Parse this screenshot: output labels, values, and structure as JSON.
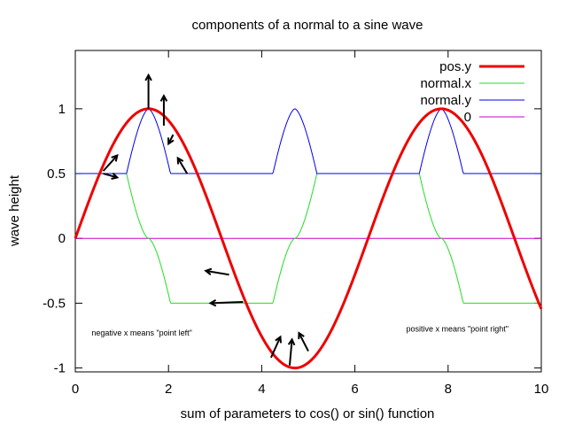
{
  "chart_data": {
    "type": "line",
    "title": "components of a normal to a sine wave",
    "xlabel": "sum of parameters to cos() or sin() function",
    "ylabel": "wave height",
    "xlim": [
      0,
      10
    ],
    "ylim": [
      -1.03,
      1.45
    ],
    "x_ticks": [
      0,
      2,
      4,
      6,
      8,
      10
    ],
    "y_ticks": [
      -1,
      -0.5,
      0,
      0.5,
      1
    ],
    "x_tick_labels": [
      "0",
      "2",
      "4",
      "6",
      "8",
      "10"
    ],
    "y_tick_labels": [
      "-1",
      "-0.5",
      "0",
      "0.5",
      "1"
    ],
    "grid": false,
    "legend_position": "top-right",
    "series": [
      {
        "name": "pos.y",
        "color": "#ee0000",
        "width": "thick",
        "formula": "sin(x)"
      },
      {
        "name": "normal.x",
        "color": "#22dd22",
        "width": "thin",
        "formula": "-0.5*cos(x)/sqrt(1+cos(x)^2) ... approx: +0.5 left, -0.5 right"
      },
      {
        "name": "normal.y",
        "color": "#0000ee",
        "width": "thin",
        "formula": "1/sqrt(1+cos(x)^2)"
      },
      {
        "name": "0",
        "color": "#cc00cc",
        "width": "thin",
        "formula": "0"
      }
    ],
    "annotations": [
      {
        "text": "negative x means \"point left\"",
        "x": 0.35,
        "y": -0.75
      },
      {
        "text": "positive x means \"point right\"",
        "x": 7.1,
        "y": -0.72
      }
    ]
  }
}
